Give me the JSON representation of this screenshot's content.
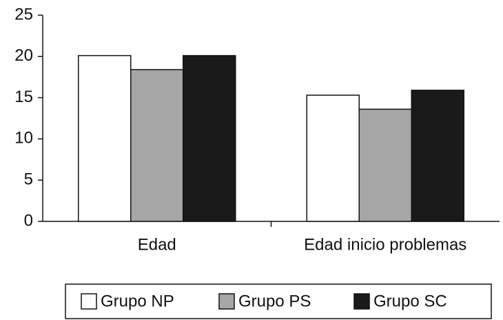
{
  "chart_data": {
    "type": "bar",
    "categories": [
      "Edad",
      "Edad inicio problemas"
    ],
    "series": [
      {
        "name": "Grupo NP",
        "color": "#ffffff",
        "values": [
          20.1,
          15.3
        ]
      },
      {
        "name": "Grupo PS",
        "color": "#a6a6a6",
        "values": [
          18.4,
          13.6
        ]
      },
      {
        "name": "Grupo SC",
        "color": "#1a1a1a",
        "values": [
          20.1,
          15.9
        ]
      }
    ],
    "ylim": [
      0,
      25
    ],
    "yticks": [
      0,
      5,
      10,
      15,
      20,
      25
    ],
    "grid": false,
    "legend": "bottom"
  }
}
